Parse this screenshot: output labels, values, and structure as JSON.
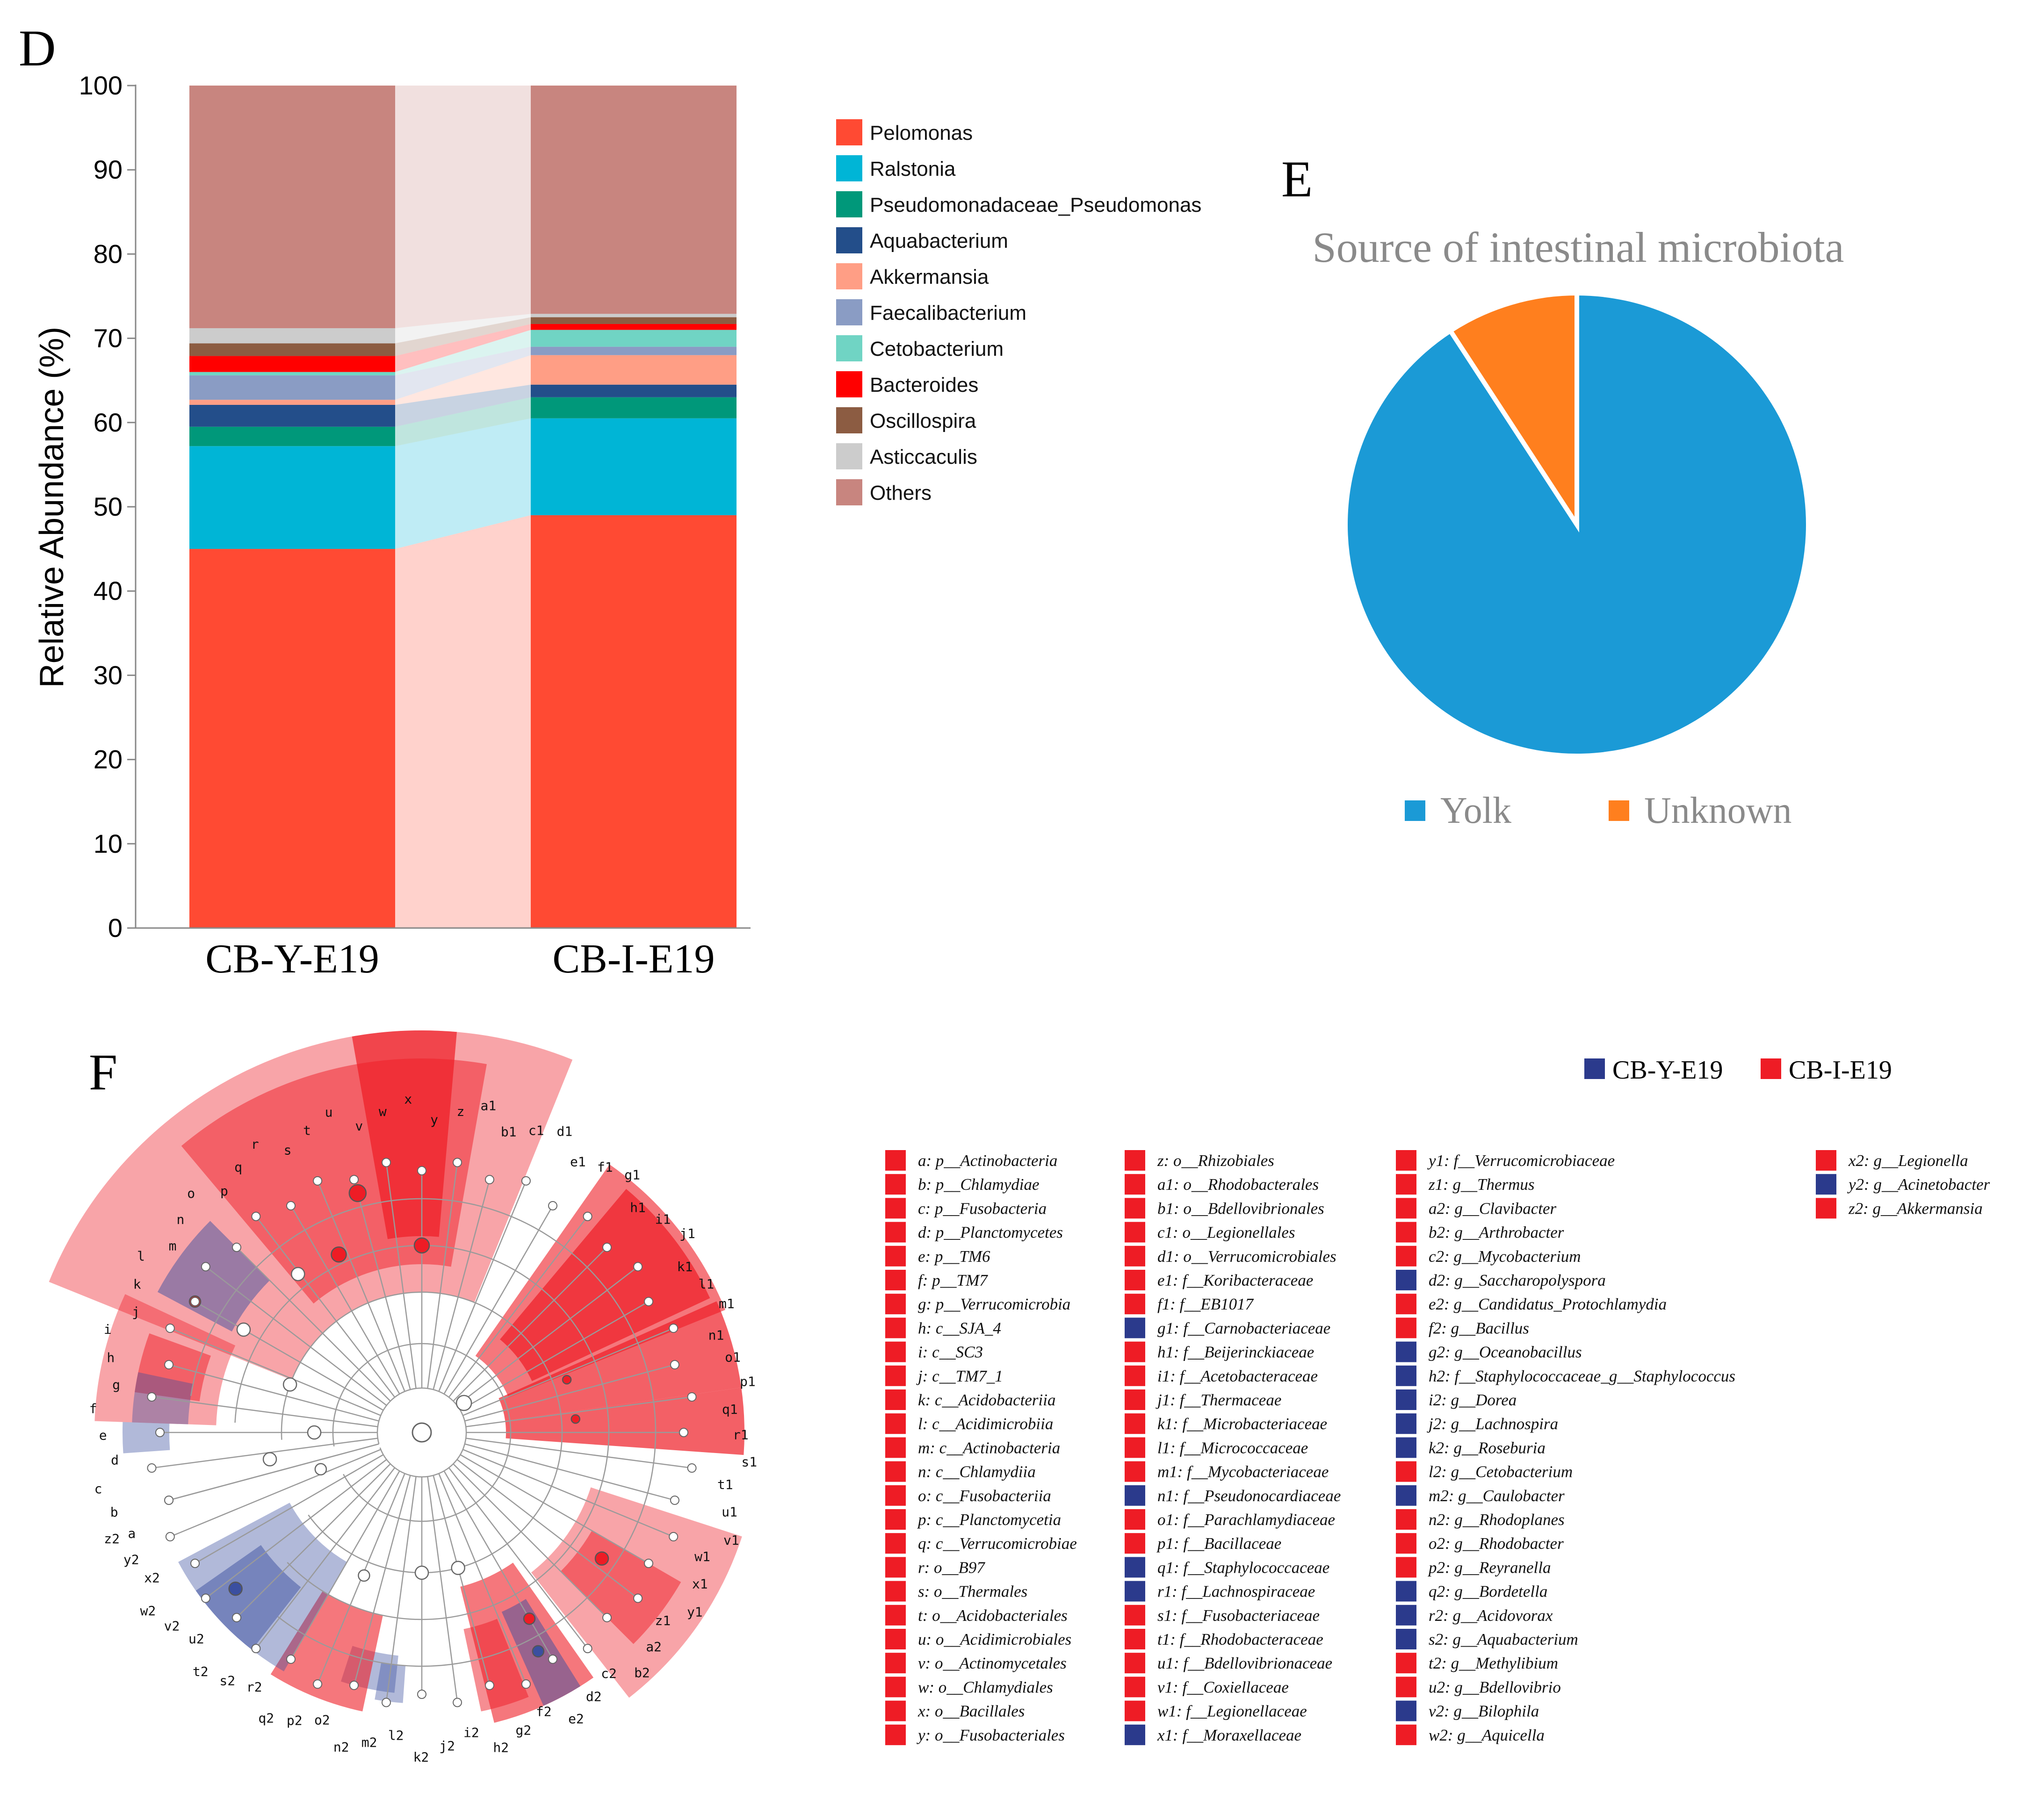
{
  "panels": {
    "D": "D",
    "E": "E",
    "F": "F"
  },
  "chart_data": [
    {
      "type": "bar",
      "stacked": true,
      "title": "",
      "ylabel": "Relative Abundance (%)",
      "xlabel": "",
      "ylim": [
        0,
        100
      ],
      "yticks": [
        0,
        10,
        20,
        30,
        40,
        50,
        60,
        70,
        80,
        90,
        100
      ],
      "categories": [
        "CB-Y-E19",
        "CB-I-E19"
      ],
      "series": [
        {
          "name": "Pelomonas",
          "color": "#ff4a33",
          "values": [
            45.0,
            49.0
          ]
        },
        {
          "name": "Ralstonia",
          "color": "#00b5d6",
          "values": [
            12.2,
            11.5
          ]
        },
        {
          "name": "Pseudomonadaceae_Pseudomonas",
          "color": "#00987a",
          "values": [
            2.3,
            2.5
          ]
        },
        {
          "name": "Aquabacterium",
          "color": "#234e8a",
          "values": [
            2.6,
            1.5
          ]
        },
        {
          "name": "Akkermansia",
          "color": "#ff9e85",
          "values": [
            0.6,
            3.5
          ]
        },
        {
          "name": "Faecalibacterium",
          "color": "#8a9cc4",
          "values": [
            2.9,
            1.0
          ]
        },
        {
          "name": "Cetobacterium",
          "color": "#70d4c4",
          "values": [
            0.4,
            2.0
          ]
        },
        {
          "name": "Bacteroides",
          "color": "#ff0000",
          "values": [
            1.9,
            0.7
          ]
        },
        {
          "name": "Oscillospira",
          "color": "#8c5c42",
          "values": [
            1.5,
            0.8
          ]
        },
        {
          "name": "Asticcaculis",
          "color": "#cccccc",
          "values": [
            1.8,
            0.4
          ]
        },
        {
          "name": "Others",
          "color": "#c8857f",
          "values": [
            28.8,
            27.1
          ]
        }
      ],
      "legend": [
        "Pelomonas",
        "Ralstonia",
        "Pseudomonadaceae_Pseudomonas",
        "Aquabacterium",
        "Akkermansia",
        "Faecalibacterium",
        "Cetobacterium",
        "Bacteroides",
        "Oscillospira",
        "Asticcaculis",
        "Others"
      ]
    },
    {
      "type": "pie",
      "title": "Source of intestinal microbiota",
      "labels": [
        "Yolk",
        "Unknown"
      ],
      "values": [
        90.8,
        9.2
      ],
      "colors": [
        "#1b9ad6",
        "#ff7f1e"
      ]
    }
  ],
  "lefse": {
    "legend": [
      {
        "label": "CB-Y-E19",
        "color": "#2b3a8c"
      },
      {
        "label": "CB-I-E19",
        "color": "#ee1c25"
      }
    ],
    "node_labels": [
      "a",
      "b",
      "c",
      "d",
      "e",
      "f",
      "g",
      "h",
      "i",
      "j",
      "k",
      "l",
      "m",
      "n",
      "o",
      "p",
      "q",
      "r",
      "s",
      "t",
      "u",
      "v",
      "w",
      "x",
      "y",
      "z",
      "a1",
      "b1",
      "c1",
      "d1",
      "e1",
      "f1",
      "g1",
      "h1",
      "i1",
      "j1",
      "k1",
      "l1",
      "m1",
      "n1",
      "o1",
      "p1",
      "q1",
      "r1",
      "s1",
      "t1",
      "u1",
      "v1",
      "w1",
      "x1",
      "y1",
      "z1",
      "a2",
      "b2",
      "c2",
      "d2",
      "e2",
      "f2",
      "g2",
      "h2",
      "i2",
      "j2",
      "k2",
      "l2",
      "m2",
      "n2",
      "o2",
      "p2",
      "q2",
      "r2",
      "s2",
      "t2",
      "u2",
      "v2",
      "w2",
      "x2",
      "y2",
      "z2"
    ],
    "columns": [
      [
        {
          "text": "a: p__Actinobacteria",
          "group": "I"
        },
        {
          "text": "b: p__Chlamydiae",
          "group": "I"
        },
        {
          "text": "c: p__Fusobacteria",
          "group": "I"
        },
        {
          "text": "d: p__Planctomycetes",
          "group": "I"
        },
        {
          "text": "e: p__TM6",
          "group": "I"
        },
        {
          "text": "f: p__TM7",
          "group": "I"
        },
        {
          "text": "g: p__Verrucomicrobia",
          "group": "I"
        },
        {
          "text": "h: c__SJA_4",
          "group": "I"
        },
        {
          "text": "i: c__SC3",
          "group": "I"
        },
        {
          "text": "j: c__TM7_1",
          "group": "I"
        },
        {
          "text": "k: c__Acidobacteriia",
          "group": "I"
        },
        {
          "text": "l: c__Acidimicrobiia",
          "group": "I"
        },
        {
          "text": "m: c__Actinobacteria",
          "group": "I"
        },
        {
          "text": "n: c__Chlamydiia",
          "group": "I"
        },
        {
          "text": "o: c__Fusobacteriia",
          "group": "I"
        },
        {
          "text": "p: c__Planctomycetia",
          "group": "I"
        },
        {
          "text": "q: c__Verrucomicrobiae",
          "group": "I"
        },
        {
          "text": "r: o__B97",
          "group": "I"
        },
        {
          "text": "s: o__Thermales",
          "group": "I"
        },
        {
          "text": "t: o__Acidobacteriales",
          "group": "I"
        },
        {
          "text": "u: o__Acidimicrobiales",
          "group": "I"
        },
        {
          "text": "v: o__Actinomycetales",
          "group": "I"
        },
        {
          "text": "w: o__Chlamydiales",
          "group": "I"
        },
        {
          "text": "x: o__Bacillales",
          "group": "I"
        },
        {
          "text": "y: o__Fusobacteriales",
          "group": "I"
        }
      ],
      [
        {
          "text": "z: o__Rhizobiales",
          "group": "I"
        },
        {
          "text": "a1: o__Rhodobacterales",
          "group": "I"
        },
        {
          "text": "b1: o__Bdellovibrionales",
          "group": "I"
        },
        {
          "text": "c1: o__Legionellales",
          "group": "I"
        },
        {
          "text": "d1: o__Verrucomicrobiales",
          "group": "I"
        },
        {
          "text": "e1: f__Koribacteraceae",
          "group": "I"
        },
        {
          "text": "f1: f__EB1017",
          "group": "I"
        },
        {
          "text": "g1: f__Carnobacteriaceae",
          "group": "Y"
        },
        {
          "text": "h1: f__Beijerinckiaceae",
          "group": "I"
        },
        {
          "text": "i1: f__Acetobacteraceae",
          "group": "I"
        },
        {
          "text": "j1: f__Thermaceae",
          "group": "I"
        },
        {
          "text": "k1: f__Microbacteriaceae",
          "group": "I"
        },
        {
          "text": "l1: f__Micrococcaceae",
          "group": "I"
        },
        {
          "text": "m1: f__Mycobacteriaceae",
          "group": "I"
        },
        {
          "text": "n1: f__Pseudonocardiaceae",
          "group": "Y"
        },
        {
          "text": "o1: f__Parachlamydiaceae",
          "group": "I"
        },
        {
          "text": "p1: f__Bacillaceae",
          "group": "I"
        },
        {
          "text": "q1: f__Staphylococcaceae",
          "group": "Y"
        },
        {
          "text": "r1: f__Lachnospiraceae",
          "group": "Y"
        },
        {
          "text": "s1: f__Fusobacteriaceae",
          "group": "I"
        },
        {
          "text": "t1: f__Rhodobacteraceae",
          "group": "I"
        },
        {
          "text": "u1: f__Bdellovibrionaceae",
          "group": "I"
        },
        {
          "text": "v1: f__Coxiellaceae",
          "group": "I"
        },
        {
          "text": "w1: f__Legionellaceae",
          "group": "I"
        },
        {
          "text": "x1: f__Moraxellaceae",
          "group": "Y"
        }
      ],
      [
        {
          "text": "y1: f__Verrucomicrobiaceae",
          "group": "I"
        },
        {
          "text": "z1: g__Thermus",
          "group": "I"
        },
        {
          "text": "a2: g__Clavibacter",
          "group": "I"
        },
        {
          "text": "b2: g__Arthrobacter",
          "group": "I"
        },
        {
          "text": "c2: g__Mycobacterium",
          "group": "I"
        },
        {
          "text": "d2: g__Saccharopolyspora",
          "group": "Y"
        },
        {
          "text": "e2: g__Candidatus_Protochlamydia",
          "group": "I"
        },
        {
          "text": "f2: g__Bacillus",
          "group": "I"
        },
        {
          "text": "g2: g__Oceanobacillus",
          "group": "Y"
        },
        {
          "text": "h2: f__Staphylococcaceae_g__Staphylococcus",
          "group": "Y"
        },
        {
          "text": "i2: g__Dorea",
          "group": "Y"
        },
        {
          "text": "j2: g__Lachnospira",
          "group": "Y"
        },
        {
          "text": "k2: g__Roseburia",
          "group": "Y"
        },
        {
          "text": "l2: g__Cetobacterium",
          "group": "I"
        },
        {
          "text": "m2: g__Caulobacter",
          "group": "Y"
        },
        {
          "text": "n2: g__Rhodoplanes",
          "group": "I"
        },
        {
          "text": "o2: g__Rhodobacter",
          "group": "I"
        },
        {
          "text": "p2: g__Reyranella",
          "group": "I"
        },
        {
          "text": "q2: g__Bordetella",
          "group": "Y"
        },
        {
          "text": "r2: g__Acidovorax",
          "group": "Y"
        },
        {
          "text": "s2: g__Aquabacterium",
          "group": "Y"
        },
        {
          "text": "t2: g__Methylibium",
          "group": "I"
        },
        {
          "text": "u2: g__Bdellovibrio",
          "group": "I"
        },
        {
          "text": "v2: g__Bilophila",
          "group": "Y"
        },
        {
          "text": "w2: g__Aquicella",
          "group": "I"
        }
      ],
      [
        {
          "text": "x2: g__Legionella",
          "group": "I"
        },
        {
          "text": "y2: g__Acinetobacter",
          "group": "Y"
        },
        {
          "text": "z2: g__Akkermansia",
          "group": "I"
        }
      ]
    ]
  }
}
